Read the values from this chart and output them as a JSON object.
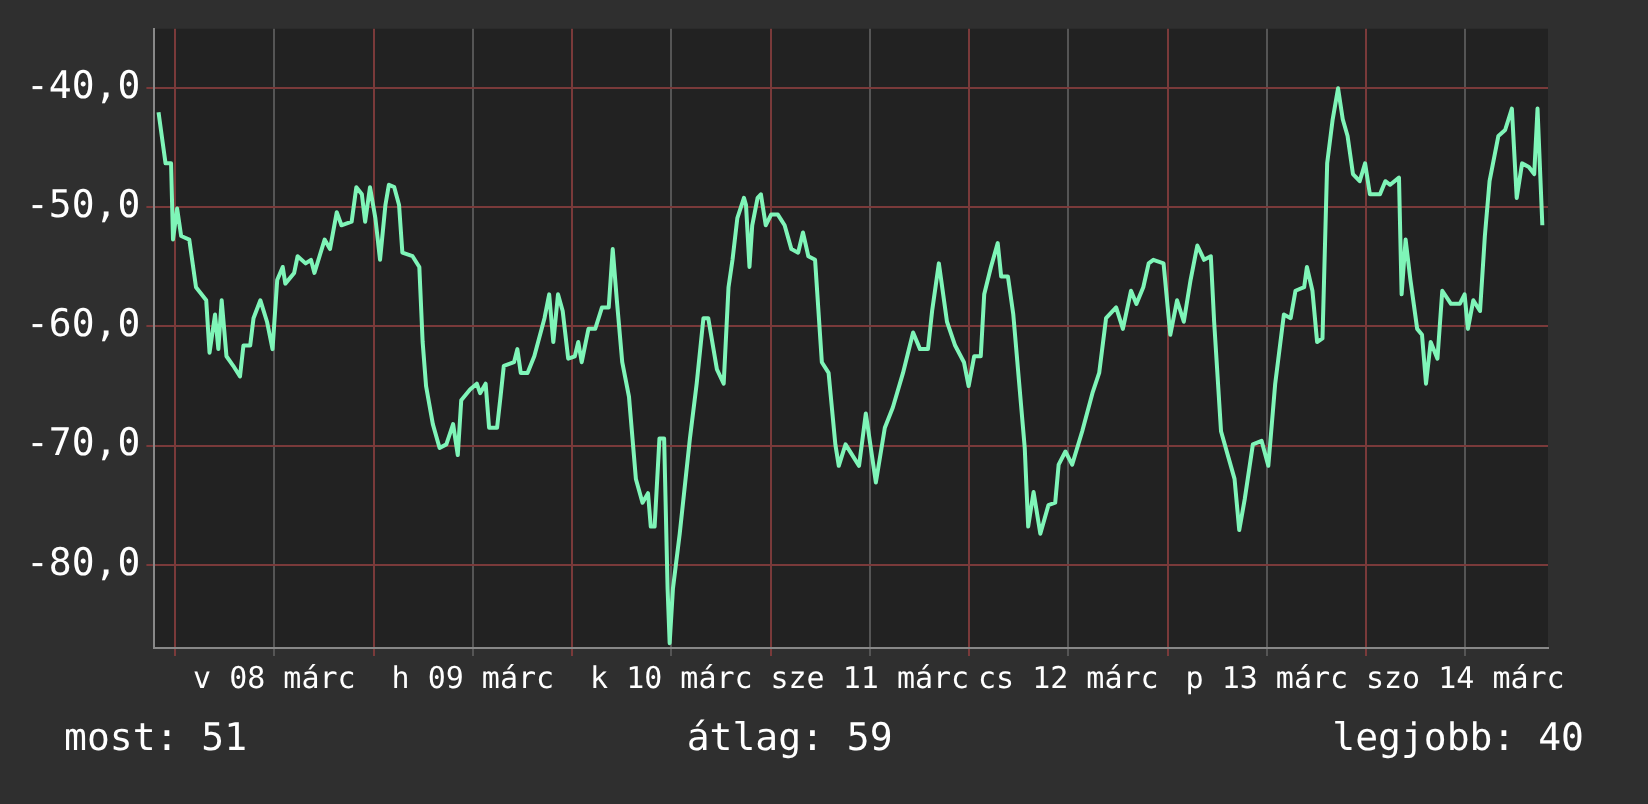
{
  "chart_data": {
    "type": "line",
    "x": [
      "--03-07T22:00",
      "--03-07T22:27",
      "--03-07T22:51",
      "--03-07T23:31",
      "--03-07T23:45",
      "--03-08T00:15",
      "--03-08T00:44",
      "--03-08T01:43",
      "--03-08T02:32",
      "--03-08T03:46",
      "--03-08T04:10",
      "--03-08T04:50",
      "--03-08T05:14",
      "--03-08T05:38",
      "--03-08T06:13",
      "--03-08T07:02",
      "--03-08T07:51",
      "--03-08T08:16",
      "--03-08T09:05",
      "--03-08T09:29",
      "--03-08T10:19",
      "--03-08T11:07",
      "--03-08T11:47",
      "--03-08T12:21",
      "--03-08T13:01",
      "--03-08T13:20",
      "--03-08T14:24",
      "--03-08T14:49",
      "--03-08T15:47",
      "--03-08T16:26",
      "--03-08T16:51",
      "--03-08T18:05",
      "--03-08T18:44",
      "--03-08T19:33",
      "--03-08T20:07",
      "--03-08T21:21",
      "--03-08T21:55",
      "--03-08T22:35",
      "--03-08T22:59",
      "--03-08T23:34",
      "--03-09T00:13",
      "--03-09T00:47",
      "--03-09T01:26",
      "--03-09T01:51",
      "--03-09T02:30",
      "--03-09T03:05",
      "--03-09T03:29",
      "--03-09T04:43",
      "--03-09T05:32",
      "--03-09T05:56",
      "--03-09T06:21",
      "--03-09T07:10",
      "--03-09T07:59",
      "--03-09T08:48",
      "--03-09T09:37",
      "--03-09T10:11",
      "--03-09T10:36",
      "--03-09T11:40",
      "--03-09T12:29",
      "--03-09T12:53",
      "--03-09T13:33",
      "--03-09T13:58",
      "--03-09T14:56",
      "--03-09T15:21",
      "--03-09T15:45",
      "--03-09T16:59",
      "--03-09T17:23",
      "--03-09T17:48",
      "--03-09T18:37",
      "--03-09T19:26",
      "--03-09T20:40",
      "--03-09T21:14",
      "--03-09T21:44",
      "--03-09T22:18",
      "--03-09T22:52",
      "--03-09T23:32",
      "--03-10T00:20",
      "--03-10T00:45",
      "--03-10T01:10",
      "--03-10T01:59",
      "--03-10T02:48",
      "--03-10T03:37",
      "--03-10T04:26",
      "--03-10T04:55",
      "--03-10T05:25",
      "--03-10T06:04",
      "--03-10T06:53",
      "--03-10T07:43",
      "--03-10T08:31",
      "--03-10T09:11",
      "--03-10T09:31",
      "--03-10T09:59",
      "--03-10T10:34",
      "--03-10T11:08",
      "--03-10T11:33",
      "--03-10T11:48",
      "--03-10T12:12",
      "--03-10T13:01",
      "--03-10T14:15",
      "--03-10T15:04",
      "--03-10T15:53",
      "--03-10T16:28",
      "--03-10T17:31",
      "--03-10T18:20",
      "--03-10T18:55",
      "--03-10T19:24",
      "--03-10T19:59",
      "--03-10T20:47",
      "--03-10T21:02",
      "--03-10T21:27",
      "--03-10T21:47",
      "--03-10T22:26",
      "--03-10T22:50",
      "--03-10T23:25",
      "--03-11T00:04",
      "--03-11T00:53",
      "--03-11T01:42",
      "--03-11T02:31",
      "--03-11T03:20",
      "--03-11T03:55",
      "--03-11T04:34",
      "--03-11T05:23",
      "--03-11T06:12",
      "--03-11T07:01",
      "--03-11T07:50",
      "--03-11T08:15",
      "--03-11T09:04",
      "--03-11T10:42",
      "--03-11T11:31",
      "--03-11T12:44",
      "--03-11T13:49",
      "--03-11T14:47",
      "--03-11T16:01",
      "--03-11T17:14",
      "--03-11T18:04",
      "--03-11T19:02",
      "--03-11T19:32",
      "--03-11T20:21",
      "--03-11T21:20",
      "--03-11T22:19",
      "--03-11T23:23",
      "--03-11T23:57",
      "--03-12T00:37",
      "--03-12T01:25",
      "--03-12T01:50",
      "--03-12T02:39",
      "--03-12T03:28",
      "--03-12T03:53",
      "--03-12T04:42",
      "--03-12T05:21",
      "--03-12T05:55",
      "--03-12T06:44",
      "--03-12T07:09",
      "--03-12T07:48",
      "--03-12T08:37",
      "--03-12T09:36",
      "--03-12T10:25",
      "--03-12T10:50",
      "--03-12T11:39",
      "--03-12T12:28",
      "--03-12T13:41",
      "--03-12T14:55",
      "--03-12T15:44",
      "--03-12T16:34",
      "--03-12T17:47",
      "--03-12T18:36",
      "--03-12T19:35",
      "--03-12T20:14",
      "--03-12T21:04",
      "--03-12T21:43",
      "--03-12T22:17",
      "--03-12T23:31",
      "--03-13T00:20",
      "--03-13T01:09",
      "--03-13T01:58",
      "--03-13T02:47",
      "--03-13T03:36",
      "--03-13T04:25",
      "--03-13T05:14",
      "--03-13T05:38",
      "--03-13T06:28",
      "--03-13T07:17",
      "--03-13T08:06",
      "--03-13T08:40",
      "--03-13T09:20",
      "--03-13T10:19",
      "--03-13T11:22",
      "--03-13T12:11",
      "--03-13T13:01",
      "--03-13T14:04",
      "--03-13T14:53",
      "--03-13T15:28",
      "--03-13T16:31",
      "--03-13T16:51",
      "--03-13T17:31",
      "--03-13T18:05",
      "--03-13T18:44",
      "--03-13T19:18",
      "--03-13T19:58",
      "--03-13T20:37",
      "--03-13T21:11",
      "--03-13T21:46",
      "--03-13T22:25",
      "--03-13T23:14",
      "--03-13T23:53",
      "--03-14T00:28",
      "--03-14T01:41",
      "--03-14T02:20",
      "--03-14T02:55",
      "--03-14T03:59",
      "--03-14T04:18",
      "--03-14T04:47",
      "--03-14T05:22",
      "--03-14T06:11",
      "--03-14T06:46",
      "--03-14T07:15",
      "--03-14T07:49",
      "--03-14T08:38",
      "--03-14T09:13",
      "--03-14T10:16",
      "--03-14T11:20",
      "--03-14T11:55",
      "--03-14T12:19",
      "--03-14T12:58",
      "--03-14T13:47",
      "--03-14T14:22",
      "--03-14T14:56",
      "--03-14T16:00",
      "--03-14T16:49",
      "--03-14T17:38",
      "--03-14T18:13",
      "--03-14T18:52",
      "--03-14T19:41",
      "--03-14T20:20",
      "--03-14T20:44",
      "--03-14T21:19"
    ],
    "series": [
      {
        "color": "#7ff5b8",
        "values": [
          -42.0,
          -44.3,
          -46.3,
          -46.3,
          -52.7,
          -50.1,
          -52.4,
          -52.7,
          -56.7,
          -57.8,
          -62.2,
          -59.0,
          -61.9,
          -57.8,
          -62.5,
          -63.3,
          -64.2,
          -61.6,
          -61.6,
          -59.3,
          -57.8,
          -59.6,
          -61.9,
          -56.1,
          -55.0,
          -56.4,
          -55.5,
          -54.1,
          -54.7,
          -54.4,
          -55.5,
          -52.7,
          -53.5,
          -50.4,
          -51.5,
          -51.2,
          -48.3,
          -48.9,
          -51.2,
          -48.3,
          -50.9,
          -54.4,
          -49.8,
          -48.1,
          -48.3,
          -49.8,
          -53.8,
          -54.1,
          -55.0,
          -61.3,
          -65.0,
          -68.2,
          -70.2,
          -69.9,
          -68.2,
          -70.8,
          -66.2,
          -65.3,
          -64.8,
          -65.6,
          -64.8,
          -68.5,
          -68.5,
          -65.9,
          -63.3,
          -63.0,
          -61.9,
          -63.9,
          -63.9,
          -62.5,
          -59.3,
          -57.3,
          -61.3,
          -57.3,
          -58.7,
          -62.7,
          -62.5,
          -61.3,
          -63.0,
          -60.2,
          -60.2,
          -58.4,
          -58.4,
          -53.5,
          -57.8,
          -63.0,
          -65.9,
          -72.8,
          -74.8,
          -74.0,
          -76.8,
          -76.8,
          -69.4,
          -69.4,
          -82.0,
          -86.6,
          -82.0,
          -77.4,
          -69.4,
          -64.8,
          -59.3,
          -59.3,
          -63.6,
          -64.8,
          -56.7,
          -54.4,
          -50.9,
          -49.2,
          -49.8,
          -55.0,
          -51.5,
          -49.2,
          -48.9,
          -51.5,
          -50.6,
          -50.6,
          -51.5,
          -53.5,
          -53.8,
          -52.1,
          -54.1,
          -54.4,
          -63.0,
          -63.9,
          -69.9,
          -71.7,
          -69.9,
          -71.7,
          -67.3,
          -73.1,
          -68.5,
          -66.8,
          -63.9,
          -60.5,
          -61.9,
          -61.9,
          -58.7,
          -54.7,
          -59.6,
          -61.6,
          -63.0,
          -65.0,
          -62.5,
          -62.5,
          -57.3,
          -55.0,
          -53.0,
          -55.8,
          -55.8,
          -59.0,
          -63.6,
          -70.2,
          -76.8,
          -73.9,
          -77.4,
          -75.0,
          -74.8,
          -71.6,
          -70.5,
          -71.6,
          -68.8,
          -65.6,
          -63.9,
          -59.3,
          -58.4,
          -60.2,
          -57.0,
          -58.1,
          -56.7,
          -54.7,
          -54.4,
          -54.7,
          -60.7,
          -57.8,
          -59.6,
          -56.1,
          -53.2,
          -54.4,
          -54.1,
          -59.6,
          -68.8,
          -70.8,
          -72.8,
          -77.1,
          -74.5,
          -69.9,
          -69.6,
          -71.7,
          -64.8,
          -59.0,
          -59.3,
          -57.0,
          -56.7,
          -55.0,
          -57.0,
          -61.3,
          -61.0,
          -46.3,
          -42.6,
          -40.0,
          -42.6,
          -44.0,
          -47.2,
          -47.8,
          -46.3,
          -48.9,
          -48.9,
          -47.8,
          -48.1,
          -47.5,
          -57.3,
          -52.7,
          -56.1,
          -60.2,
          -60.7,
          -64.8,
          -61.3,
          -62.7,
          -57.0,
          -58.1,
          -58.1,
          -57.3,
          -60.2,
          -57.8,
          -58.7,
          -52.4,
          -47.8,
          -44.0,
          -43.5,
          -41.7,
          -49.2,
          -46.3,
          -46.6,
          -47.2,
          -41.7,
          -51.5
        ]
      }
    ],
    "xlim": [
      "--03-07T21:30",
      "--03-14T22:00"
    ],
    "xticks": [
      {
        "value": "--03-08T00:00",
        "label": null
      },
      {
        "value": "--03-08T12:00",
        "label": "v 08 márc"
      },
      {
        "value": "--03-09T00:00",
        "label": null
      },
      {
        "value": "--03-09T12:00",
        "label": "h 09 márc"
      },
      {
        "value": "--03-10T00:00",
        "label": null
      },
      {
        "value": "--03-10T12:00",
        "label": "k 10 márc"
      },
      {
        "value": "--03-11T00:00",
        "label": null
      },
      {
        "value": "--03-11T12:00",
        "label": "sze 11 márc"
      },
      {
        "value": "--03-12T00:00",
        "label": null
      },
      {
        "value": "--03-12T12:00",
        "label": "cs 12 márc"
      },
      {
        "value": "--03-13T00:00",
        "label": null
      },
      {
        "value": "--03-13T12:00",
        "label": "p 13 márc"
      },
      {
        "value": "--03-14T00:00",
        "label": null
      },
      {
        "value": "--03-14T12:00",
        "label": "szo 14 márc"
      }
    ],
    "ylim": [
      -87,
      -35
    ],
    "yticks": [
      {
        "value": -80,
        "label": "-80,0"
      },
      {
        "value": -70,
        "label": "-70,0"
      },
      {
        "value": -60,
        "label": "-60,0"
      },
      {
        "value": -50,
        "label": "-50,0"
      },
      {
        "value": -40,
        "label": "-40,0"
      }
    ],
    "grid": true,
    "legend": false,
    "marker": "none",
    "line_style": "solid",
    "annotations": [
      "most: 51",
      "átlag: 59",
      "legjobb: 40"
    ]
  }
}
